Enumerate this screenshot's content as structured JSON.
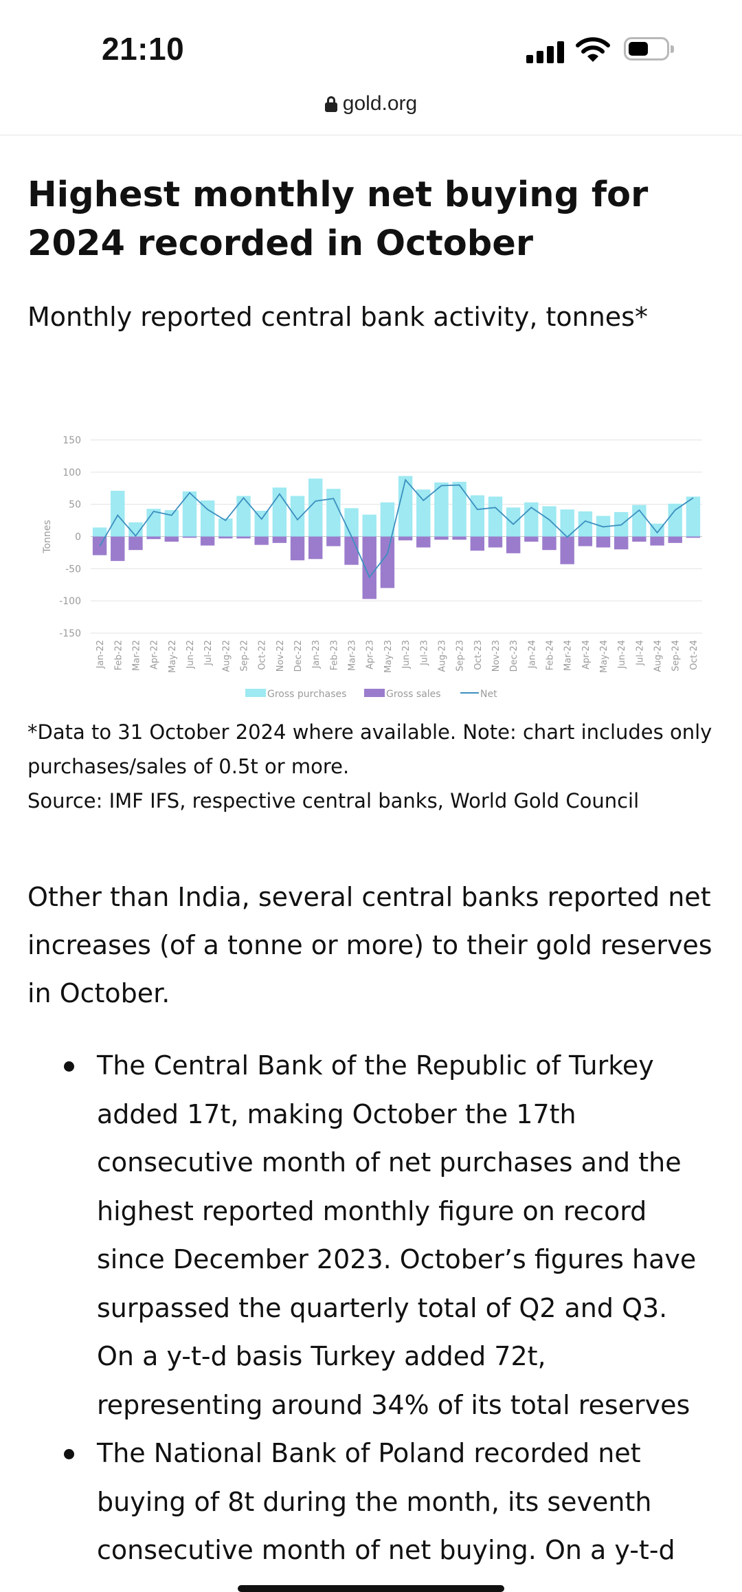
{
  "status_bar": {
    "time": "21:10"
  },
  "browser": {
    "domain": "gold.org"
  },
  "article": {
    "title": "Highest monthly net buying for 2024 recorded in October",
    "subtitle": "Monthly reported central bank activity, tonnes*",
    "note": "*Data to 31 October 2024 where available. Note: chart includes only purchases/sales of 0.5t or more.",
    "source": "Source: IMF IFS, respective central banks, World Gold Council",
    "paragraph": "Other than India, several central banks reported net increases (of a tonne or more) to their gold reserves in October.",
    "bullets": [
      "The Central Bank of the Republic of Turkey added 17t, making October the 17th consecutive month of net purchases and the highest reported monthly figure on record since December 2023. October’s figures have surpassed the quarterly total of Q2 and Q3. On a y-t-d basis Turkey added 72t, representing around 34% of its total reserves",
      "The National Bank of Poland recorded net buying of 8t during the month, its seventh consecutive month of net buying. On a y-t-d"
    ]
  },
  "colors": {
    "purchases": "#9ee9f2",
    "sales": "#9b7ccc",
    "net": "#3b8fbf"
  },
  "chart_data": {
    "type": "bar",
    "ylabel": "Tonnes",
    "ylim": [
      -150,
      150
    ],
    "yticks": [
      150,
      100,
      50,
      0,
      -50,
      -100,
      -150
    ],
    "legend_position": "bottom",
    "grid": true,
    "categories": [
      "Jan-22",
      "Feb-22",
      "Mar-22",
      "Apr-22",
      "May-22",
      "Jun-22",
      "Jul-22",
      "Aug-22",
      "Sep-22",
      "Oct-22",
      "Nov-22",
      "Dec-22",
      "Jan-23",
      "Feb-23",
      "Mar-23",
      "Apr-23",
      "May-23",
      "Jun-23",
      "Jul-23",
      "Aug-23",
      "Sep-23",
      "Oct-23",
      "Nov-23",
      "Dec-23",
      "Jan-24",
      "Feb-24",
      "Mar-24",
      "Apr-24",
      "May-24",
      "Jun-24",
      "Jul-24",
      "Aug-24",
      "Sep-24",
      "Oct-24"
    ],
    "series": [
      {
        "name": "Gross purchases",
        "type": "bar",
        "values": [
          14,
          71,
          22,
          43,
          41,
          70,
          56,
          28,
          63,
          40,
          76,
          63,
          90,
          74,
          44,
          34,
          53,
          94,
          73,
          84,
          85,
          64,
          62,
          45,
          53,
          47,
          42,
          39,
          32,
          38,
          49,
          20,
          51,
          62
        ]
      },
      {
        "name": "Gross sales",
        "type": "bar",
        "values": [
          -29,
          -38,
          -21,
          -4,
          -8,
          -2,
          -14,
          -3,
          -3,
          -13,
          -10,
          -37,
          -35,
          -15,
          -44,
          -97,
          -80,
          -6,
          -17,
          -5,
          -5,
          -22,
          -17,
          -26,
          -8,
          -21,
          -43,
          -15,
          -17,
          -20,
          -8,
          -14,
          -10,
          -2
        ]
      },
      {
        "name": "Net",
        "type": "line",
        "values": [
          -15,
          33,
          1,
          39,
          33,
          68,
          42,
          25,
          60,
          27,
          66,
          26,
          55,
          59,
          0,
          -63,
          -27,
          88,
          56,
          79,
          80,
          42,
          45,
          19,
          45,
          26,
          -1,
          24,
          15,
          18,
          41,
          6,
          41,
          60
        ]
      }
    ]
  }
}
